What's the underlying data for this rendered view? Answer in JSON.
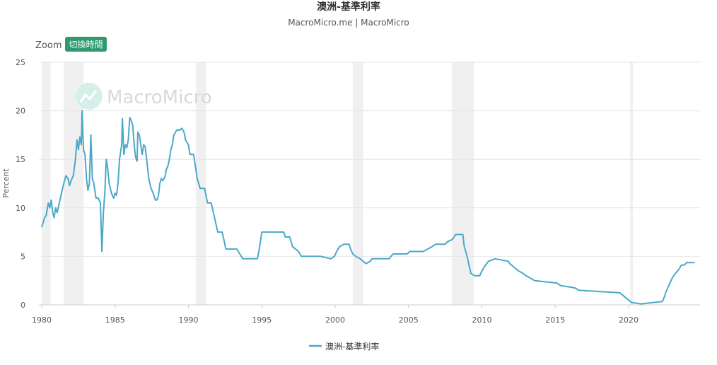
{
  "chart_data": {
    "type": "line",
    "title": "澳洲-基準利率",
    "subtitle": "MacroMicro.me | MacroMicro",
    "ylabel": "Percent",
    "xlim": [
      1980,
      2025
    ],
    "ylim": [
      0,
      25
    ],
    "y_ticks": [
      0,
      5,
      10,
      15,
      20,
      25
    ],
    "x_ticks": [
      1980,
      1985,
      1990,
      1995,
      2000,
      2005,
      2010,
      2015,
      2020
    ],
    "grid": true,
    "legend": "bottom-center",
    "series": [
      {
        "name": "澳洲-基準利率",
        "color": "#4aa8c8",
        "points": [
          [
            1980.0,
            8.0
          ],
          [
            1980.2,
            9.0
          ],
          [
            1980.3,
            9.2
          ],
          [
            1980.45,
            10.5
          ],
          [
            1980.55,
            10.0
          ],
          [
            1980.65,
            10.8
          ],
          [
            1980.75,
            9.5
          ],
          [
            1980.85,
            9.0
          ],
          [
            1980.95,
            10.0
          ],
          [
            1981.05,
            9.5
          ],
          [
            1981.2,
            10.5
          ],
          [
            1981.35,
            11.5
          ],
          [
            1981.5,
            12.5
          ],
          [
            1981.65,
            13.3
          ],
          [
            1981.8,
            13.0
          ],
          [
            1981.9,
            12.3
          ],
          [
            1982.0,
            12.8
          ],
          [
            1982.15,
            13.3
          ],
          [
            1982.3,
            15.0
          ],
          [
            1982.4,
            17.0
          ],
          [
            1982.5,
            16.0
          ],
          [
            1982.6,
            17.3
          ],
          [
            1982.7,
            16.5
          ],
          [
            1982.75,
            20.0
          ],
          [
            1982.85,
            16.0
          ],
          [
            1982.95,
            15.5
          ],
          [
            1983.05,
            13.0
          ],
          [
            1983.15,
            11.8
          ],
          [
            1983.25,
            12.5
          ],
          [
            1983.35,
            17.5
          ],
          [
            1983.45,
            13.0
          ],
          [
            1983.55,
            12.5
          ],
          [
            1983.7,
            11.0
          ],
          [
            1983.85,
            11.0
          ],
          [
            1984.0,
            10.5
          ],
          [
            1984.1,
            5.5
          ],
          [
            1984.2,
            9.5
          ],
          [
            1984.3,
            11.5
          ],
          [
            1984.4,
            15.0
          ],
          [
            1984.5,
            14.0
          ],
          [
            1984.6,
            12.5
          ],
          [
            1984.75,
            11.5
          ],
          [
            1984.9,
            11.0
          ],
          [
            1985.0,
            11.5
          ],
          [
            1985.1,
            11.3
          ],
          [
            1985.2,
            12.5
          ],
          [
            1985.3,
            15.0
          ],
          [
            1985.45,
            16.5
          ],
          [
            1985.5,
            19.2
          ],
          [
            1985.6,
            15.5
          ],
          [
            1985.7,
            16.5
          ],
          [
            1985.8,
            16.2
          ],
          [
            1985.9,
            17.0
          ],
          [
            1986.0,
            19.3
          ],
          [
            1986.1,
            19.0
          ],
          [
            1986.2,
            18.5
          ],
          [
            1986.3,
            16.5
          ],
          [
            1986.4,
            15.2
          ],
          [
            1986.5,
            14.8
          ],
          [
            1986.55,
            17.8
          ],
          [
            1986.65,
            17.5
          ],
          [
            1986.75,
            16.5
          ],
          [
            1986.85,
            15.5
          ],
          [
            1986.95,
            16.5
          ],
          [
            1987.05,
            16.3
          ],
          [
            1987.15,
            15.0
          ],
          [
            1987.3,
            13.0
          ],
          [
            1987.45,
            12.0
          ],
          [
            1987.6,
            11.5
          ],
          [
            1987.75,
            10.8
          ],
          [
            1987.85,
            10.8
          ],
          [
            1987.95,
            11.2
          ],
          [
            1988.05,
            12.5
          ],
          [
            1988.15,
            13.0
          ],
          [
            1988.25,
            12.8
          ],
          [
            1988.4,
            13.2
          ],
          [
            1988.5,
            14.0
          ],
          [
            1988.6,
            14.3
          ],
          [
            1988.7,
            15.0
          ],
          [
            1988.8,
            16.0
          ],
          [
            1988.9,
            16.5
          ],
          [
            1989.0,
            17.5
          ],
          [
            1989.2,
            18.0
          ],
          [
            1989.4,
            18.0
          ],
          [
            1989.55,
            18.2
          ],
          [
            1989.7,
            17.8
          ],
          [
            1989.8,
            17.0
          ],
          [
            1990.0,
            16.5
          ],
          [
            1990.1,
            15.5
          ],
          [
            1990.35,
            15.5
          ],
          [
            1990.5,
            14.0
          ],
          [
            1990.6,
            13.0
          ],
          [
            1990.8,
            12.0
          ],
          [
            1991.1,
            12.0
          ],
          [
            1991.3,
            10.5
          ],
          [
            1991.55,
            10.5
          ],
          [
            1991.7,
            9.5
          ],
          [
            1991.85,
            8.5
          ],
          [
            1992.0,
            7.5
          ],
          [
            1992.3,
            7.5
          ],
          [
            1992.45,
            6.5
          ],
          [
            1992.55,
            5.75
          ],
          [
            1993.3,
            5.75
          ],
          [
            1993.5,
            5.25
          ],
          [
            1993.7,
            4.75
          ],
          [
            1994.7,
            4.75
          ],
          [
            1994.8,
            5.5
          ],
          [
            1994.9,
            6.5
          ],
          [
            1995.0,
            7.5
          ],
          [
            1996.5,
            7.5
          ],
          [
            1996.6,
            7.0
          ],
          [
            1996.9,
            7.0
          ],
          [
            1997.1,
            6.0
          ],
          [
            1997.5,
            5.5
          ],
          [
            1997.7,
            5.0
          ],
          [
            1998.0,
            5.0
          ],
          [
            1999.0,
            5.0
          ],
          [
            1999.7,
            4.75
          ],
          [
            1999.95,
            5.0
          ],
          [
            2000.1,
            5.5
          ],
          [
            2000.3,
            6.0
          ],
          [
            2000.6,
            6.25
          ],
          [
            2000.95,
            6.25
          ],
          [
            2001.05,
            5.75
          ],
          [
            2001.2,
            5.25
          ],
          [
            2001.4,
            5.0
          ],
          [
            2001.7,
            4.75
          ],
          [
            2001.9,
            4.5
          ],
          [
            2002.1,
            4.25
          ],
          [
            2002.4,
            4.5
          ],
          [
            2002.5,
            4.75
          ],
          [
            2003.7,
            4.75
          ],
          [
            2003.8,
            5.0
          ],
          [
            2003.95,
            5.25
          ],
          [
            2004.9,
            5.25
          ],
          [
            2005.1,
            5.5
          ],
          [
            2006.0,
            5.5
          ],
          [
            2006.3,
            5.75
          ],
          [
            2006.6,
            6.0
          ],
          [
            2006.85,
            6.25
          ],
          [
            2007.5,
            6.25
          ],
          [
            2007.65,
            6.5
          ],
          [
            2008.0,
            6.75
          ],
          [
            2008.2,
            7.25
          ],
          [
            2008.7,
            7.25
          ],
          [
            2008.8,
            6.0
          ],
          [
            2008.95,
            5.25
          ],
          [
            2009.1,
            4.25
          ],
          [
            2009.25,
            3.25
          ],
          [
            2009.5,
            3.0
          ],
          [
            2009.85,
            3.0
          ],
          [
            2010.0,
            3.5
          ],
          [
            2010.2,
            4.0
          ],
          [
            2010.45,
            4.5
          ],
          [
            2010.9,
            4.75
          ],
          [
            2011.8,
            4.5
          ],
          [
            2011.9,
            4.25
          ],
          [
            2012.3,
            3.75
          ],
          [
            2012.5,
            3.5
          ],
          [
            2012.8,
            3.25
          ],
          [
            2013.0,
            3.0
          ],
          [
            2013.3,
            2.75
          ],
          [
            2013.6,
            2.5
          ],
          [
            2015.1,
            2.25
          ],
          [
            2015.35,
            2.0
          ],
          [
            2016.35,
            1.75
          ],
          [
            2016.6,
            1.5
          ],
          [
            2019.4,
            1.25
          ],
          [
            2019.6,
            1.0
          ],
          [
            2019.8,
            0.75
          ],
          [
            2020.2,
            0.25
          ],
          [
            2020.85,
            0.1
          ],
          [
            2022.3,
            0.35
          ],
          [
            2022.45,
            0.85
          ],
          [
            2022.55,
            1.35
          ],
          [
            2022.7,
            1.85
          ],
          [
            2022.85,
            2.35
          ],
          [
            2023.0,
            2.85
          ],
          [
            2023.25,
            3.35
          ],
          [
            2023.4,
            3.6
          ],
          [
            2023.5,
            3.85
          ],
          [
            2023.6,
            4.1
          ],
          [
            2023.8,
            4.1
          ],
          [
            2023.95,
            4.35
          ],
          [
            2024.5,
            4.35
          ]
        ]
      }
    ],
    "recession_bands": [
      [
        1980.0,
        1980.6
      ],
      [
        1981.5,
        1982.85
      ],
      [
        1990.5,
        1991.2
      ],
      [
        2001.2,
        2001.9
      ],
      [
        2007.95,
        2009.45
      ],
      [
        2020.1,
        2020.3
      ]
    ]
  },
  "ui": {
    "zoom_label": "Zoom",
    "toggle_button_label": "切換時間",
    "watermark_text": "MacroMicro"
  },
  "colors": {
    "line": "#4aa8c8",
    "button_bg": "#2e9a6f",
    "recession": "#f0f0f0",
    "grid": "#e6e6e6"
  }
}
